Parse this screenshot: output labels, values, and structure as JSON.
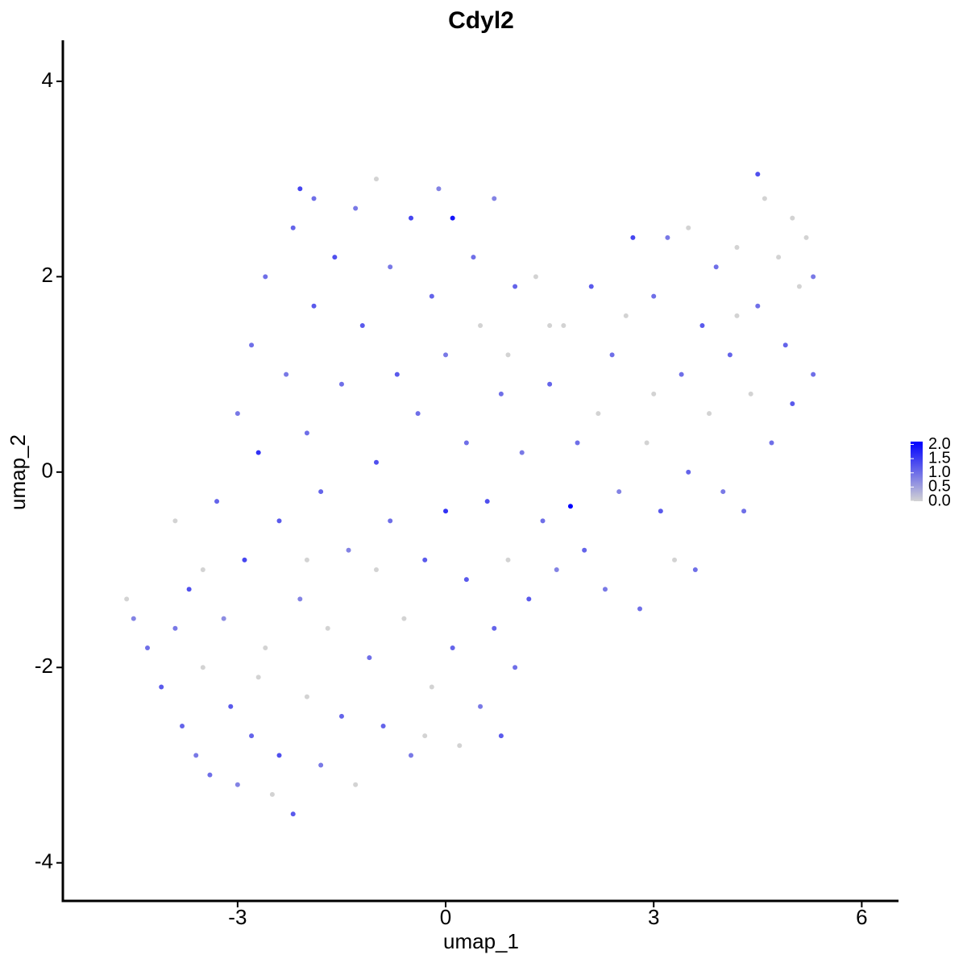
{
  "chart_data": {
    "type": "scatter",
    "title": "Cdyl2",
    "x_label": "umap_1",
    "y_label": "umap_2",
    "xlim": [
      -5.52,
      6.53
    ],
    "ylim": [
      -4.39,
      4.42
    ],
    "xticks": [
      -3,
      0,
      3,
      6
    ],
    "yticks": [
      -4,
      -2,
      0,
      2,
      4
    ],
    "color_low": "#d3d3d3",
    "color_high": "#0000ff",
    "clim": [
      0,
      2.1
    ],
    "cticks": [
      {
        "value": 0,
        "label": "0.0"
      },
      {
        "value": 0.5,
        "label": "0.5"
      },
      {
        "value": 1,
        "label": "1.0"
      },
      {
        "value": 1.5,
        "label": "1.5"
      },
      {
        "value": 2,
        "label": "2.0"
      }
    ],
    "x": [
      -4.6,
      -4.5,
      -4.3,
      -4.1,
      -3.9,
      -3.8,
      -3.7,
      -3.6,
      -3.5,
      -3.4,
      -3.3,
      -3.2,
      -3.1,
      -3.0,
      -3.0,
      -2.9,
      -2.8,
      -2.8,
      -2.7,
      -2.6,
      -2.6,
      -2.5,
      -2.4,
      -2.4,
      -2.3,
      -2.2,
      -2.2,
      -2.1,
      -2.0,
      -2.0,
      -1.9,
      -1.9,
      -1.8,
      -1.8,
      -1.7,
      -1.6,
      -1.5,
      -1.5,
      -1.4,
      -1.3,
      -1.3,
      -1.2,
      -1.1,
      -1.0,
      -1.0,
      -0.9,
      -0.8,
      -0.8,
      -0.7,
      -0.6,
      -0.5,
      -0.5,
      -0.4,
      -0.3,
      -0.2,
      -0.2,
      -0.1,
      0.0,
      0.0,
      0.1,
      0.1,
      0.2,
      0.3,
      0.3,
      0.4,
      0.5,
      0.5,
      0.6,
      0.7,
      0.7,
      0.8,
      0.8,
      0.9,
      1.0,
      1.0,
      1.1,
      1.2,
      1.3,
      1.4,
      1.5,
      1.6,
      1.8,
      1.7,
      1.9,
      2.0,
      2.1,
      2.2,
      2.3,
      2.4,
      2.5,
      2.6,
      2.7,
      2.8,
      2.9,
      3.0,
      3.1,
      3.2,
      3.3,
      3.4,
      3.5,
      3.5,
      3.6,
      3.7,
      3.8,
      3.9,
      4.0,
      4.1,
      4.2,
      4.3,
      4.4,
      4.5,
      4.5,
      4.6,
      4.7,
      4.8,
      4.9,
      5.0,
      5.0,
      5.1,
      5.2,
      5.3,
      5.3,
      -3.9,
      -2.0,
      -1.0,
      0.9,
      1.5,
      -2.7,
      -0.3,
      4.2,
      3.0,
      -3.5,
      -2.1
    ],
    "y": [
      -1.3,
      -1.5,
      -1.8,
      -2.2,
      -1.6,
      -2.6,
      -1.2,
      -2.9,
      -2.0,
      -3.1,
      -0.3,
      -1.5,
      -2.4,
      -3.2,
      0.6,
      -0.9,
      -2.7,
      1.3,
      0.2,
      -1.8,
      2.0,
      -3.3,
      -0.5,
      -2.9,
      1.0,
      -3.5,
      2.5,
      -1.3,
      0.4,
      -2.3,
      1.7,
      2.8,
      -0.2,
      -3.0,
      -1.6,
      2.2,
      0.9,
      -2.5,
      -0.8,
      2.7,
      -3.2,
      1.5,
      -1.9,
      0.1,
      3.0,
      -2.6,
      2.1,
      -0.5,
      1.0,
      -1.5,
      2.6,
      -2.9,
      0.6,
      -0.9,
      1.8,
      -2.2,
      2.9,
      -0.4,
      1.2,
      -1.8,
      2.6,
      -2.8,
      0.3,
      -1.1,
      2.2,
      -2.4,
      1.5,
      -0.3,
      2.8,
      -1.6,
      0.8,
      -2.7,
      -0.9,
      1.9,
      -2.0,
      0.2,
      -1.3,
      2.0,
      -0.5,
      0.9,
      -1.0,
      -0.35,
      1.5,
      0.3,
      -0.8,
      1.9,
      0.6,
      -1.2,
      1.2,
      -0.2,
      1.6,
      2.4,
      -1.4,
      0.3,
      1.8,
      -0.4,
      2.4,
      -0.9,
      1.0,
      2.5,
      0.0,
      -1.0,
      1.5,
      0.6,
      2.1,
      -0.2,
      1.2,
      2.3,
      -0.4,
      0.8,
      3.05,
      1.7,
      2.8,
      0.3,
      2.2,
      1.3,
      2.6,
      0.7,
      1.9,
      2.4,
      1.0,
      2.0,
      -0.5,
      -0.9,
      -1.0,
      1.2,
      1.5,
      -2.1,
      -2.7,
      1.6,
      0.8,
      -1.0,
      2.9
    ],
    "values": [
      0,
      0.8,
      1.0,
      1.2,
      0.9,
      1.1,
      1.3,
      0.9,
      0,
      1.0,
      1.1,
      0.7,
      1.2,
      0.8,
      0.9,
      1.4,
      1.1,
      1.0,
      1.6,
      0,
      1.0,
      0,
      1.2,
      1.3,
      0.9,
      1.2,
      1.1,
      0.8,
      1.0,
      0,
      1.2,
      1.0,
      1.1,
      0.9,
      0,
      1.3,
      1.0,
      1.1,
      0.8,
      0.9,
      0,
      1.2,
      1.0,
      1.3,
      0,
      1.1,
      0.9,
      1.0,
      1.2,
      0,
      1.4,
      0.9,
      1.0,
      1.2,
      1.1,
      0,
      0.8,
      1.6,
      0.9,
      1.1,
      1.9,
      0,
      1.0,
      1.2,
      1.0,
      0.9,
      0,
      1.3,
      0.8,
      1.1,
      1.0,
      1.2,
      0,
      1.1,
      1.0,
      0.9,
      1.2,
      0,
      1.0,
      1.1,
      0.8,
      2.1,
      0,
      1.0,
      1.1,
      1.2,
      0,
      0.9,
      1.0,
      0.8,
      0,
      1.4,
      1.0,
      0,
      1.0,
      1.2,
      0.9,
      0,
      1.0,
      0,
      1.1,
      1.0,
      1.2,
      0,
      1.0,
      0.9,
      1.1,
      0,
      1.0,
      0,
      1.3,
      1.0,
      0,
      1.0,
      0,
      1.1,
      0,
      1.2,
      0,
      0,
      1.0,
      0.9,
      0,
      0,
      0,
      0,
      0,
      0,
      0,
      0,
      0,
      0,
      1.4
    ]
  }
}
